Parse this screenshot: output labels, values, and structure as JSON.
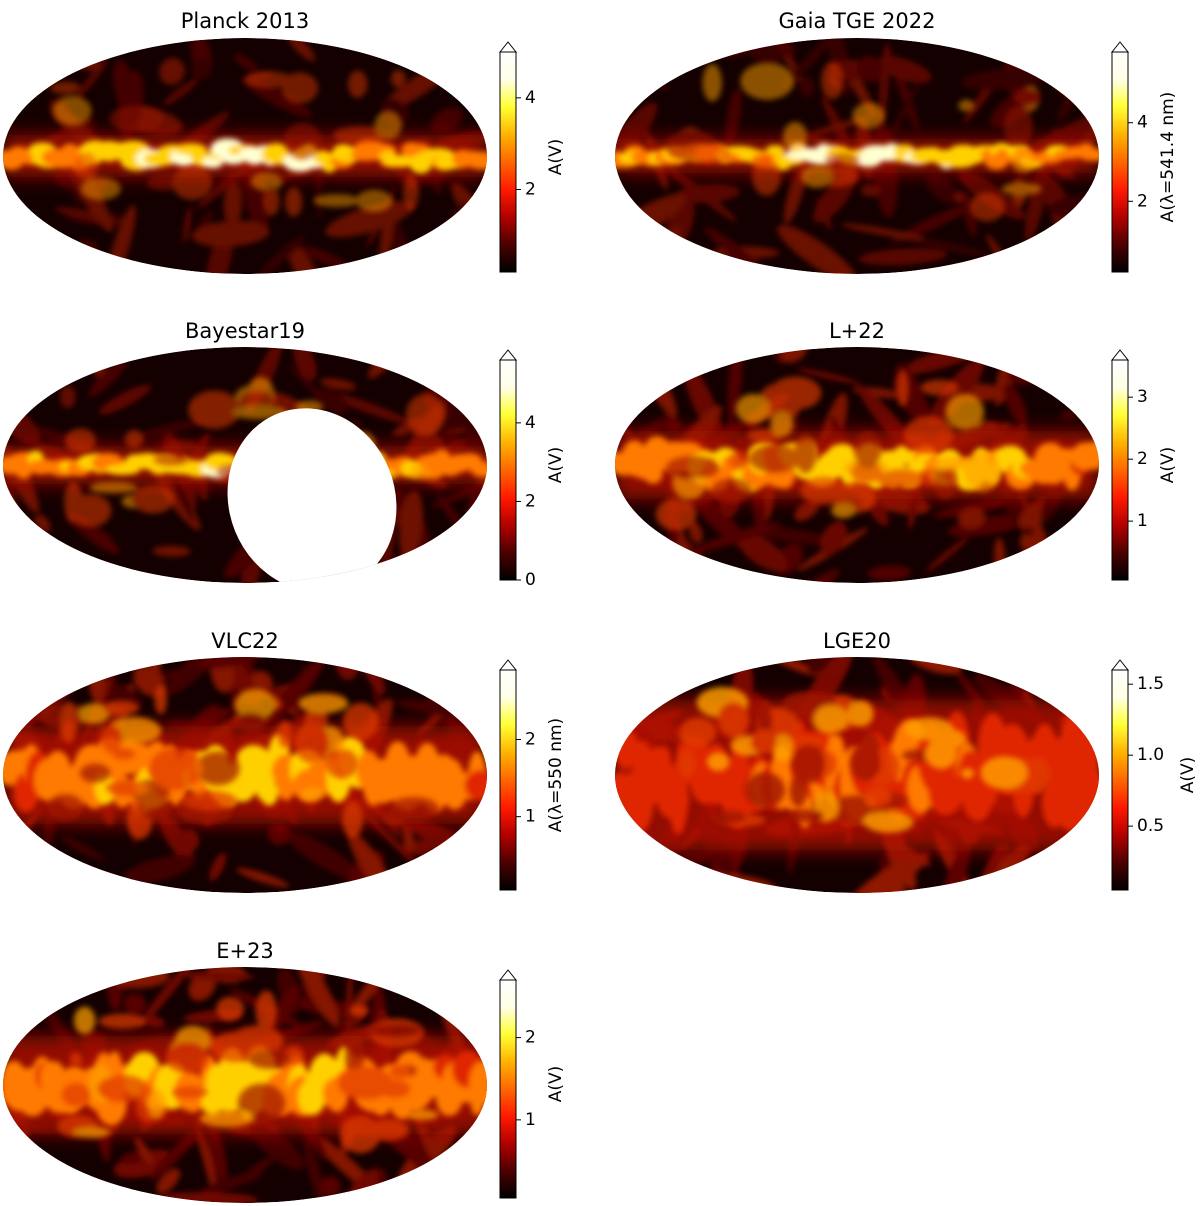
{
  "figure": {
    "panel_count": 7
  },
  "colormap": {
    "name": "hot",
    "stops": [
      "#000000",
      "#4d0000",
      "#b30000",
      "#ff1a00",
      "#ff6600",
      "#ffb300",
      "#ffff33",
      "#ffffe6",
      "#ffffff"
    ]
  },
  "chart_data": [
    {
      "type": "heatmap",
      "projection": "mollweide",
      "title": "Planck 2013",
      "colorbar_label": "A(V)",
      "colorbar_range": [
        0.2,
        5.0
      ],
      "colorbar_ticks": [
        2,
        4
      ],
      "colorbar_extend": "max",
      "features": {
        "plane_intensity": 1.0,
        "plane_thickness": 0.055,
        "structure": 0.25,
        "white_patch": false
      }
    },
    {
      "type": "heatmap",
      "projection": "mollweide",
      "title": "Gaia TGE 2022",
      "colorbar_label": "A(λ=541.4 nm)",
      "colorbar_range": [
        0.2,
        5.8
      ],
      "colorbar_ticks": [
        2,
        4
      ],
      "colorbar_extend": "max",
      "features": {
        "plane_intensity": 1.0,
        "plane_thickness": 0.045,
        "structure": 0.3,
        "white_patch": false
      }
    },
    {
      "type": "heatmap",
      "projection": "mollweide",
      "title": "Bayestar19",
      "colorbar_label": "A(V)",
      "colorbar_range": [
        0,
        5.6
      ],
      "colorbar_ticks": [
        0,
        2,
        4
      ],
      "colorbar_extend": "max",
      "features": {
        "plane_intensity": 0.95,
        "plane_thickness": 0.05,
        "structure": 0.35,
        "white_patch": true
      }
    },
    {
      "type": "heatmap",
      "projection": "mollweide",
      "title": "L+22",
      "colorbar_label": "A(V)",
      "colorbar_range": [
        0.05,
        3.6
      ],
      "colorbar_ticks": [
        1,
        2,
        3
      ],
      "colorbar_extend": "max",
      "features": {
        "plane_intensity": 0.9,
        "plane_thickness": 0.09,
        "structure": 0.5,
        "white_patch": false
      }
    },
    {
      "type": "heatmap",
      "projection": "mollweide",
      "title": "VLC22",
      "colorbar_label": "A(λ=550 nm)",
      "colorbar_range": [
        0.05,
        2.9
      ],
      "colorbar_ticks": [
        1,
        2
      ],
      "colorbar_extend": "max",
      "features": {
        "plane_intensity": 0.85,
        "plane_thickness": 0.13,
        "structure": 0.6,
        "white_patch": false
      }
    },
    {
      "type": "heatmap",
      "projection": "mollweide",
      "title": "LGE20",
      "colorbar_label": "A(V)",
      "colorbar_range": [
        0.05,
        1.6
      ],
      "colorbar_ticks": [
        0.5,
        1.0,
        1.5
      ],
      "colorbar_tick_labels": [
        "0.5",
        "1.0",
        "1.5"
      ],
      "colorbar_extend": "max",
      "features": {
        "plane_intensity": 0.55,
        "plane_thickness": 0.2,
        "structure": 0.75,
        "white_patch": false
      }
    },
    {
      "type": "heatmap",
      "projection": "mollweide",
      "title": "E+23",
      "colorbar_label": "A(V)",
      "colorbar_range": [
        0.05,
        2.7
      ],
      "colorbar_ticks": [
        1,
        2
      ],
      "colorbar_extend": "max",
      "features": {
        "plane_intensity": 0.85,
        "plane_thickness": 0.13,
        "structure": 0.6,
        "white_patch": false
      }
    }
  ]
}
